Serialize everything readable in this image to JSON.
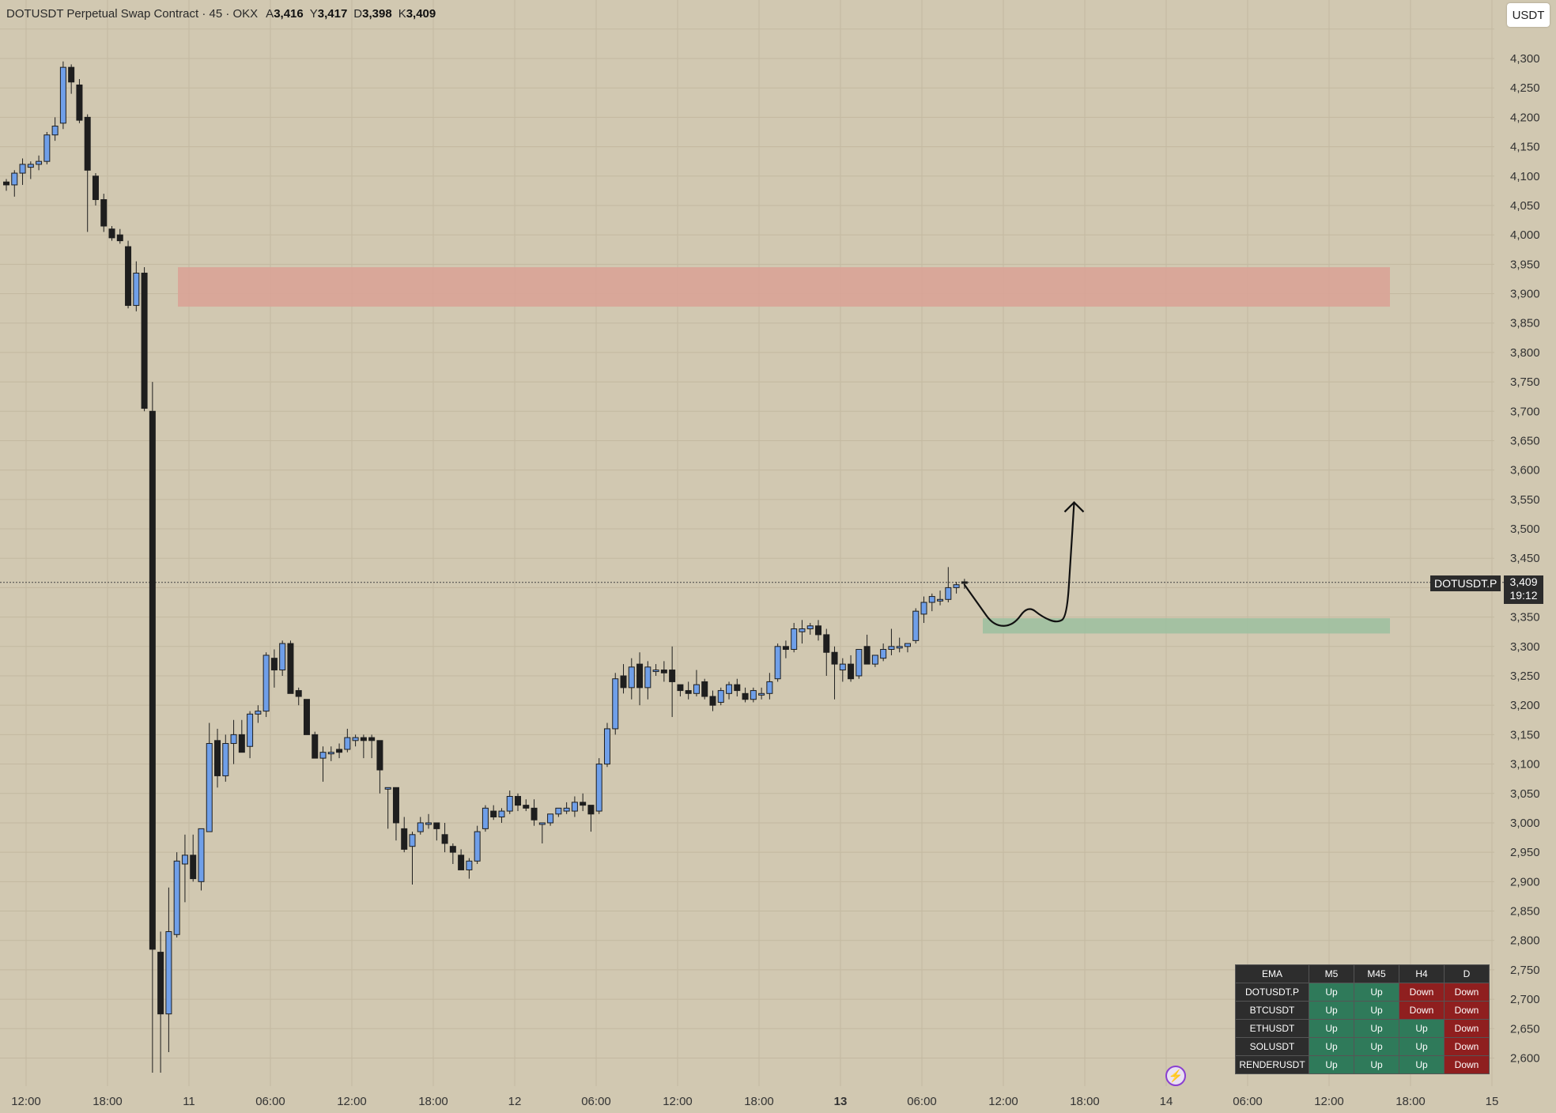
{
  "header": {
    "title": "DOTUSDT Perpetual Swap Contract · 45 · OKX",
    "ohlc": [
      {
        "label": "A",
        "value": "3,416"
      },
      {
        "label": "Y",
        "value": "3,417"
      },
      {
        "label": "D",
        "value": "3,398"
      },
      {
        "label": "K",
        "value": "3,409"
      }
    ]
  },
  "currency_button": "USDT",
  "price_label": {
    "symbol": "DOTUSDT.P",
    "price": "3,409",
    "countdown": "19:12"
  },
  "colors": {
    "background": "#d1c8b1",
    "candle_up": "#6f9fe9",
    "candle_down": "#1e1e1e",
    "resistance_zone": "#dba195",
    "support_zone": "#9cc0a0",
    "ema_up": "#2f7a5a",
    "ema_down": "#8f1f1f"
  },
  "chart_data": {
    "type": "candlestick",
    "y_axis": {
      "range": [
        2550,
        4370
      ],
      "ticks": [
        4300,
        4250,
        4200,
        4150,
        4100,
        4050,
        4000,
        3950,
        3900,
        3850,
        3800,
        3750,
        3700,
        3650,
        3600,
        3550,
        3500,
        3450,
        3350,
        3300,
        3250,
        3200,
        3150,
        3100,
        3050,
        3000,
        2950,
        2900,
        2850,
        2800,
        2750,
        2700,
        2650,
        2600
      ]
    },
    "x_axis": {
      "ticks": [
        {
          "label": "12:00",
          "bold": false
        },
        {
          "label": "18:00",
          "bold": false
        },
        {
          "label": "11",
          "bold": false
        },
        {
          "label": "06:00",
          "bold": false
        },
        {
          "label": "12:00",
          "bold": false
        },
        {
          "label": "18:00",
          "bold": false
        },
        {
          "label": "12",
          "bold": false
        },
        {
          "label": "06:00",
          "bold": false
        },
        {
          "label": "12:00",
          "bold": false
        },
        {
          "label": "18:00",
          "bold": false
        },
        {
          "label": "13",
          "bold": true
        },
        {
          "label": "06:00",
          "bold": false
        },
        {
          "label": "12:00",
          "bold": false
        },
        {
          "label": "18:00",
          "bold": false
        },
        {
          "label": "14",
          "bold": false
        },
        {
          "label": "06:00",
          "bold": false
        },
        {
          "label": "12:00",
          "bold": false
        },
        {
          "label": "18:00",
          "bold": false
        },
        {
          "label": "15",
          "bold": false
        }
      ]
    },
    "current_price": 3409,
    "candles": [
      [
        4090,
        4095,
        4075,
        4085
      ],
      [
        4085,
        4110,
        4065,
        4105
      ],
      [
        4105,
        4130,
        4085,
        4120
      ],
      [
        4115,
        4125,
        4095,
        4120
      ],
      [
        4120,
        4135,
        4110,
        4125
      ],
      [
        4125,
        4175,
        4120,
        4170
      ],
      [
        4170,
        4200,
        4160,
        4185
      ],
      [
        4190,
        4295,
        4180,
        4285
      ],
      [
        4285,
        4290,
        4240,
        4260
      ],
      [
        4255,
        4265,
        4190,
        4195
      ],
      [
        4200,
        4205,
        4005,
        4110
      ],
      [
        4100,
        4105,
        4050,
        4060
      ],
      [
        4060,
        4070,
        4005,
        4015
      ],
      [
        4010,
        4015,
        3990,
        3995
      ],
      [
        4000,
        4010,
        3985,
        3990
      ],
      [
        3980,
        3990,
        3875,
        3880
      ],
      [
        3880,
        3955,
        3870,
        3935
      ],
      [
        3935,
        3945,
        3700,
        3705
      ],
      [
        3700,
        3750,
        2575,
        2785
      ],
      [
        2780,
        2815,
        2575,
        2675
      ],
      [
        2675,
        2890,
        2610,
        2815
      ],
      [
        2810,
        2950,
        2805,
        2935
      ],
      [
        2930,
        2980,
        2865,
        2945
      ],
      [
        2945,
        2980,
        2900,
        2905
      ],
      [
        2900,
        2990,
        2885,
        2990
      ],
      [
        2985,
        3170,
        2985,
        3135
      ],
      [
        3140,
        3160,
        3060,
        3080
      ],
      [
        3080,
        3150,
        3070,
        3135
      ],
      [
        3135,
        3175,
        3100,
        3150
      ],
      [
        3150,
        3175,
        3120,
        3120
      ],
      [
        3130,
        3190,
        3110,
        3185
      ],
      [
        3185,
        3200,
        3170,
        3190
      ],
      [
        3190,
        3290,
        3180,
        3285
      ],
      [
        3280,
        3295,
        3230,
        3260
      ],
      [
        3260,
        3310,
        3250,
        3305
      ],
      [
        3305,
        3310,
        3220,
        3220
      ],
      [
        3225,
        3230,
        3200,
        3215
      ],
      [
        3210,
        3210,
        3150,
        3150
      ],
      [
        3150,
        3155,
        3110,
        3110
      ],
      [
        3110,
        3130,
        3070,
        3120
      ],
      [
        3120,
        3130,
        3105,
        3120
      ],
      [
        3125,
        3135,
        3110,
        3120
      ],
      [
        3125,
        3160,
        3120,
        3145
      ],
      [
        3140,
        3150,
        3130,
        3145
      ],
      [
        3145,
        3150,
        3110,
        3140
      ],
      [
        3145,
        3150,
        3110,
        3140
      ],
      [
        3140,
        3140,
        3050,
        3090
      ],
      [
        3060,
        3060,
        2990,
        3060
      ],
      [
        3060,
        3060,
        2970,
        3000
      ],
      [
        2990,
        3010,
        2950,
        2955
      ],
      [
        2960,
        2985,
        2895,
        2980
      ],
      [
        2985,
        3010,
        2980,
        3000
      ],
      [
        3000,
        3015,
        2990,
        3000
      ],
      [
        3000,
        3000,
        2970,
        2990
      ],
      [
        2980,
        3000,
        2950,
        2965
      ],
      [
        2960,
        2965,
        2930,
        2950
      ],
      [
        2945,
        2955,
        2920,
        2920
      ],
      [
        2920,
        2940,
        2905,
        2935
      ],
      [
        2935,
        2995,
        2930,
        2985
      ],
      [
        2990,
        3030,
        2985,
        3025
      ],
      [
        3020,
        3030,
        3005,
        3010
      ],
      [
        3010,
        3025,
        3000,
        3020
      ],
      [
        3020,
        3055,
        3015,
        3045
      ],
      [
        3045,
        3050,
        3020,
        3030
      ],
      [
        3030,
        3040,
        3020,
        3025
      ],
      [
        3025,
        3040,
        2995,
        3005
      ],
      [
        3000,
        3000,
        2965,
        3000
      ],
      [
        3000,
        3015,
        2995,
        3015
      ],
      [
        3015,
        3025,
        3010,
        3025
      ],
      [
        3020,
        3035,
        3015,
        3025
      ],
      [
        3020,
        3045,
        3010,
        3035
      ],
      [
        3035,
        3050,
        3020,
        3030
      ],
      [
        3030,
        3030,
        2985,
        3015
      ],
      [
        3020,
        3110,
        3015,
        3100
      ],
      [
        3100,
        3170,
        3095,
        3160
      ],
      [
        3160,
        3255,
        3150,
        3245
      ],
      [
        3250,
        3270,
        3220,
        3230
      ],
      [
        3230,
        3280,
        3210,
        3265
      ],
      [
        3270,
        3290,
        3200,
        3230
      ],
      [
        3230,
        3275,
        3210,
        3265
      ],
      [
        3260,
        3270,
        3250,
        3260
      ],
      [
        3260,
        3275,
        3240,
        3255
      ],
      [
        3260,
        3300,
        3180,
        3240
      ],
      [
        3235,
        3235,
        3215,
        3225
      ],
      [
        3225,
        3240,
        3210,
        3220
      ],
      [
        3220,
        3260,
        3215,
        3235
      ],
      [
        3240,
        3245,
        3210,
        3215
      ],
      [
        3215,
        3225,
        3190,
        3200
      ],
      [
        3205,
        3230,
        3200,
        3225
      ],
      [
        3220,
        3240,
        3210,
        3235
      ],
      [
        3235,
        3245,
        3215,
        3225
      ],
      [
        3220,
        3230,
        3205,
        3210
      ],
      [
        3210,
        3230,
        3205,
        3225
      ],
      [
        3220,
        3230,
        3210,
        3220
      ],
      [
        3220,
        3255,
        3210,
        3240
      ],
      [
        3245,
        3305,
        3240,
        3300
      ],
      [
        3300,
        3310,
        3280,
        3295
      ],
      [
        3295,
        3340,
        3290,
        3330
      ],
      [
        3325,
        3345,
        3305,
        3330
      ],
      [
        3330,
        3340,
        3320,
        3335
      ],
      [
        3335,
        3345,
        3310,
        3320
      ],
      [
        3320,
        3330,
        3250,
        3290
      ],
      [
        3290,
        3300,
        3210,
        3270
      ],
      [
        3260,
        3280,
        3240,
        3270
      ],
      [
        3270,
        3285,
        3240,
        3245
      ],
      [
        3250,
        3290,
        3245,
        3295
      ],
      [
        3300,
        3320,
        3270,
        3270
      ],
      [
        3270,
        3285,
        3265,
        3285
      ],
      [
        3280,
        3305,
        3275,
        3295
      ],
      [
        3295,
        3330,
        3285,
        3300
      ],
      [
        3300,
        3315,
        3290,
        3300
      ],
      [
        3300,
        3305,
        3290,
        3305
      ],
      [
        3310,
        3365,
        3305,
        3360
      ],
      [
        3355,
        3385,
        3340,
        3375
      ],
      [
        3375,
        3390,
        3360,
        3385
      ],
      [
        3380,
        3395,
        3370,
        3380
      ],
      [
        3380,
        3435,
        3375,
        3400
      ],
      [
        3400,
        3410,
        3390,
        3405
      ],
      [
        3410,
        3415,
        3398,
        3409
      ]
    ],
    "zones": [
      {
        "type": "resistance",
        "from": 3878,
        "to": 3945
      },
      {
        "type": "support",
        "from": 3322,
        "to": 3348
      }
    ],
    "projection": [
      [
        0,
        3405
      ],
      [
        3,
        3370
      ],
      [
        6,
        3335
      ],
      [
        10,
        3335
      ],
      [
        13,
        3370
      ],
      [
        16,
        3350
      ],
      [
        19,
        3340
      ],
      [
        21,
        3350
      ],
      [
        21.8,
        3450
      ],
      [
        22.5,
        3545
      ]
    ],
    "ema_table": {
      "headers": [
        "EMA",
        "M5",
        "M45",
        "H4",
        "D"
      ],
      "rows": [
        {
          "symbol": "DOTUSDT.P",
          "values": [
            "Up",
            "Up",
            "Down",
            "Down"
          ]
        },
        {
          "symbol": "BTCUSDT",
          "values": [
            "Up",
            "Up",
            "Down",
            "Down"
          ]
        },
        {
          "symbol": "ETHUSDT",
          "values": [
            "Up",
            "Up",
            "Up",
            "Down"
          ]
        },
        {
          "symbol": "SOLUSDT",
          "values": [
            "Up",
            "Up",
            "Up",
            "Down"
          ]
        },
        {
          "symbol": "RENDERUSDT",
          "values": [
            "Up",
            "Up",
            "Up",
            "Down"
          ]
        }
      ]
    }
  }
}
